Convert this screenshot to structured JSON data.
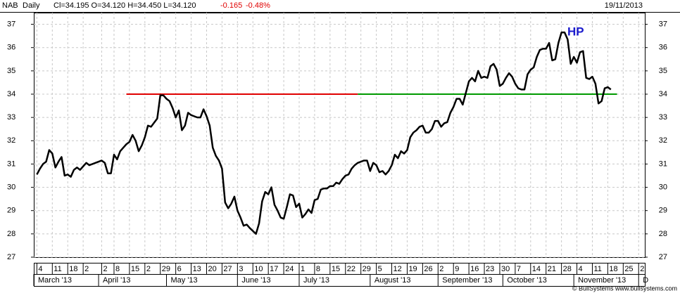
{
  "header": {
    "symbol": "NAB",
    "period": "Daily",
    "quote": "Cl=34.195 O=34.120 H=34.450 L=34.120",
    "change": "-0.165",
    "change_pct": "-0.48%",
    "date": "19/11/2013"
  },
  "footer": "© BullSystems www.bullsystems.com",
  "chart_data": {
    "type": "line",
    "color": "#000000",
    "grid": true,
    "annotation": {
      "text": "HP",
      "color": "#1a1acc"
    },
    "ylim": [
      27,
      37.5
    ],
    "yticks": [
      27,
      28,
      29,
      30,
      31,
      32,
      33,
      34,
      35,
      36,
      37
    ],
    "xlim": [
      "2013-03-01",
      "2013-12-04"
    ],
    "xticks": [
      {
        "value": "2013-03-04",
        "label": "4"
      },
      {
        "value": "2013-03-11",
        "label": "11"
      },
      {
        "value": "2013-03-18",
        "label": "18"
      },
      {
        "value": "2013-03-25",
        "label": "2"
      },
      {
        "value": "2013-04-02",
        "label": "2"
      },
      {
        "value": "2013-04-08",
        "label": "8"
      },
      {
        "value": "2013-04-15",
        "label": "15"
      },
      {
        "value": "2013-04-22",
        "label": "2"
      },
      {
        "value": "2013-04-29",
        "label": "29"
      },
      {
        "value": "2013-05-06",
        "label": "6"
      },
      {
        "value": "2013-05-13",
        "label": "13"
      },
      {
        "value": "2013-05-20",
        "label": "20"
      },
      {
        "value": "2013-05-27",
        "label": "27"
      },
      {
        "value": "2013-06-03",
        "label": "3"
      },
      {
        "value": "2013-06-10",
        "label": "10"
      },
      {
        "value": "2013-06-17",
        "label": "17"
      },
      {
        "value": "2013-06-24",
        "label": "24"
      },
      {
        "value": "2013-07-01",
        "label": "1"
      },
      {
        "value": "2013-07-08",
        "label": "8"
      },
      {
        "value": "2013-07-15",
        "label": "15"
      },
      {
        "value": "2013-07-22",
        "label": "22"
      },
      {
        "value": "2013-07-29",
        "label": "29"
      },
      {
        "value": "2013-08-05",
        "label": "5"
      },
      {
        "value": "2013-08-12",
        "label": "12"
      },
      {
        "value": "2013-08-19",
        "label": "19"
      },
      {
        "value": "2013-08-26",
        "label": "26"
      },
      {
        "value": "2013-09-02",
        "label": "2"
      },
      {
        "value": "2013-09-09",
        "label": "9"
      },
      {
        "value": "2013-09-16",
        "label": "16"
      },
      {
        "value": "2013-09-23",
        "label": "23"
      },
      {
        "value": "2013-09-30",
        "label": "30"
      },
      {
        "value": "2013-10-07",
        "label": "7"
      },
      {
        "value": "2013-10-14",
        "label": "14"
      },
      {
        "value": "2013-10-21",
        "label": "21"
      },
      {
        "value": "2013-10-28",
        "label": "28"
      },
      {
        "value": "2013-11-04",
        "label": "4"
      },
      {
        "value": "2013-11-11",
        "label": "11"
      },
      {
        "value": "2013-11-18",
        "label": "18"
      },
      {
        "value": "2013-11-25",
        "label": "25"
      },
      {
        "value": "2013-12-02",
        "label": "2"
      }
    ],
    "months": [
      {
        "value": "2013-03-01",
        "label": "March '13"
      },
      {
        "value": "2013-04-01",
        "label": "April '13"
      },
      {
        "value": "2013-05-01",
        "label": "May '13"
      },
      {
        "value": "2013-06-03",
        "label": "June '13"
      },
      {
        "value": "2013-07-01",
        "label": "July '13"
      },
      {
        "value": "2013-08-01",
        "label": "August '13"
      },
      {
        "value": "2013-09-02",
        "label": "September '13"
      },
      {
        "value": "2013-10-01",
        "label": "October '13"
      },
      {
        "value": "2013-11-01",
        "label": "November '13"
      },
      {
        "value": "2013-12-02",
        "label": "D"
      }
    ],
    "hlines": [
      {
        "color": "#e00000",
        "y": 34,
        "x": [
          "2013-04-12",
          "2013-07-26"
        ]
      },
      {
        "color": "#009900",
        "y": 34,
        "x": [
          "2013-07-26",
          "2013-11-21"
        ]
      }
    ],
    "x": [
      "2013-03-04",
      "2013-03-05",
      "2013-03-06",
      "2013-03-07",
      "2013-03-08",
      "2013-03-11",
      "2013-03-12",
      "2013-03-13",
      "2013-03-14",
      "2013-03-15",
      "2013-03-18",
      "2013-03-19",
      "2013-03-20",
      "2013-03-21",
      "2013-03-22",
      "2013-03-25",
      "2013-03-26",
      "2013-03-27",
      "2013-03-28",
      "2013-04-02",
      "2013-04-03",
      "2013-04-04",
      "2013-04-05",
      "2013-04-08",
      "2013-04-09",
      "2013-04-10",
      "2013-04-11",
      "2013-04-12",
      "2013-04-15",
      "2013-04-16",
      "2013-04-17",
      "2013-04-18",
      "2013-04-19",
      "2013-04-22",
      "2013-04-23",
      "2013-04-24",
      "2013-04-26",
      "2013-04-29",
      "2013-04-30",
      "2013-05-01",
      "2013-05-02",
      "2013-05-03",
      "2013-05-06",
      "2013-05-07",
      "2013-05-08",
      "2013-05-09",
      "2013-05-10",
      "2013-05-13",
      "2013-05-14",
      "2013-05-15",
      "2013-05-16",
      "2013-05-17",
      "2013-05-20",
      "2013-05-21",
      "2013-05-22",
      "2013-05-23",
      "2013-05-24",
      "2013-05-27",
      "2013-05-28",
      "2013-05-29",
      "2013-05-30",
      "2013-05-31",
      "2013-06-03",
      "2013-06-04",
      "2013-06-05",
      "2013-06-06",
      "2013-06-07",
      "2013-06-11",
      "2013-06-12",
      "2013-06-13",
      "2013-06-14",
      "2013-06-17",
      "2013-06-18",
      "2013-06-19",
      "2013-06-20",
      "2013-06-21",
      "2013-06-24",
      "2013-06-25",
      "2013-06-26",
      "2013-06-27",
      "2013-06-28",
      "2013-07-01",
      "2013-07-02",
      "2013-07-03",
      "2013-07-04",
      "2013-07-05",
      "2013-07-08",
      "2013-07-09",
      "2013-07-10",
      "2013-07-11",
      "2013-07-12",
      "2013-07-15",
      "2013-07-16",
      "2013-07-17",
      "2013-07-18",
      "2013-07-19",
      "2013-07-22",
      "2013-07-23",
      "2013-07-24",
      "2013-07-25",
      "2013-07-26",
      "2013-07-29",
      "2013-07-30",
      "2013-07-31",
      "2013-08-01",
      "2013-08-02",
      "2013-08-05",
      "2013-08-06",
      "2013-08-07",
      "2013-08-08",
      "2013-08-09",
      "2013-08-12",
      "2013-08-13",
      "2013-08-14",
      "2013-08-15",
      "2013-08-16",
      "2013-08-19",
      "2013-08-20",
      "2013-08-21",
      "2013-08-22",
      "2013-08-23",
      "2013-08-26",
      "2013-08-27",
      "2013-08-28",
      "2013-08-29",
      "2013-08-30",
      "2013-09-02",
      "2013-09-03",
      "2013-09-04",
      "2013-09-05",
      "2013-09-06",
      "2013-09-09",
      "2013-09-10",
      "2013-09-11",
      "2013-09-12",
      "2013-09-13",
      "2013-09-16",
      "2013-09-17",
      "2013-09-18",
      "2013-09-19",
      "2013-09-20",
      "2013-09-23",
      "2013-09-24",
      "2013-09-25",
      "2013-09-26",
      "2013-09-27",
      "2013-09-30",
      "2013-10-01",
      "2013-10-02",
      "2013-10-03",
      "2013-10-04",
      "2013-10-07",
      "2013-10-08",
      "2013-10-09",
      "2013-10-10",
      "2013-10-11",
      "2013-10-14",
      "2013-10-15",
      "2013-10-16",
      "2013-10-17",
      "2013-10-18",
      "2013-10-21",
      "2013-10-22",
      "2013-10-23",
      "2013-10-24",
      "2013-10-25",
      "2013-10-28",
      "2013-10-29",
      "2013-10-30",
      "2013-10-31",
      "2013-11-01",
      "2013-11-04",
      "2013-11-05",
      "2013-11-06",
      "2013-11-07",
      "2013-11-08",
      "2013-11-11",
      "2013-11-12",
      "2013-11-13",
      "2013-11-14",
      "2013-11-15",
      "2013-11-18",
      "2013-11-19"
    ],
    "values": [
      30.55,
      30.8,
      31.0,
      31.1,
      31.6,
      31.45,
      30.85,
      31.1,
      31.3,
      30.5,
      30.55,
      30.45,
      30.75,
      30.85,
      30.75,
      30.9,
      31.05,
      30.95,
      31.0,
      31.15,
      31.05,
      30.6,
      30.6,
      31.4,
      31.2,
      31.55,
      31.7,
      31.85,
      31.95,
      32.25,
      32.0,
      31.55,
      31.8,
      32.15,
      32.65,
      32.6,
      32.95,
      33.95,
      33.95,
      33.8,
      33.7,
      33.4,
      33.0,
      33.3,
      32.45,
      32.65,
      33.2,
      33.1,
      33.05,
      33.0,
      33.0,
      33.35,
      33.05,
      32.65,
      31.7,
      31.35,
      31.15,
      30.8,
      29.35,
      29.1,
      29.3,
      29.6,
      29.0,
      28.7,
      28.35,
      28.4,
      28.25,
      28.0,
      28.45,
      29.4,
      29.8,
      29.7,
      30.0,
      29.25,
      29.0,
      28.7,
      28.65,
      29.15,
      29.7,
      29.65,
      29.15,
      29.3,
      28.7,
      28.85,
      29.05,
      28.9,
      29.45,
      29.5,
      29.9,
      29.95,
      29.95,
      30.05,
      30.05,
      30.2,
      30.15,
      30.35,
      30.5,
      30.55,
      30.8,
      30.95,
      31.05,
      31.1,
      31.15,
      31.15,
      30.7,
      31.05,
      30.95,
      30.65,
      30.7,
      30.55,
      30.7,
      30.95,
      31.4,
      31.25,
      31.55,
      31.45,
      31.6,
      32.15,
      32.35,
      32.45,
      32.6,
      32.65,
      32.35,
      32.35,
      32.5,
      32.85,
      32.85,
      32.6,
      32.75,
      32.8,
      33.2,
      33.45,
      33.8,
      33.8,
      33.55,
      34.05,
      34.55,
      34.7,
      34.55,
      35.0,
      34.7,
      34.75,
      34.7,
      35.2,
      35.3,
      35.05,
      34.35,
      34.45,
      34.7,
      34.9,
      34.75,
      34.45,
      34.25,
      34.2,
      34.2,
      34.85,
      35.05,
      35.15,
      35.6,
      35.9,
      35.95,
      35.95,
      36.2,
      35.45,
      35.5,
      36.2,
      36.65,
      36.65,
      36.35,
      35.3,
      35.6,
      35.35,
      35.8,
      35.85,
      34.7,
      34.65,
      34.75,
      34.45,
      33.6,
      33.7,
      34.25,
      34.3,
      34.2
    ]
  }
}
